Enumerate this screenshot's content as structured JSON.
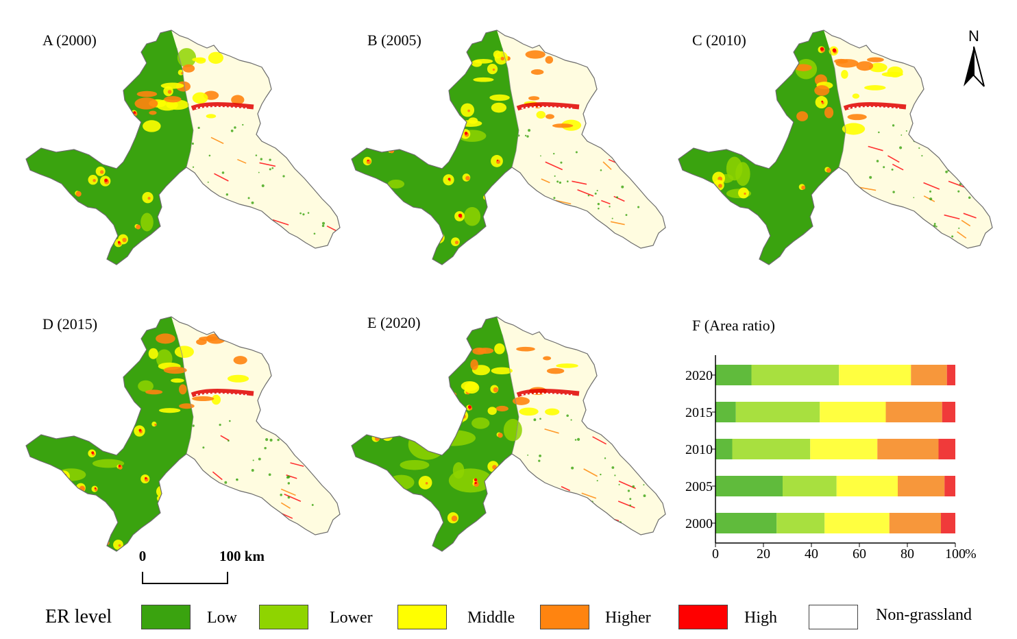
{
  "panels": {
    "a": "A (2000)",
    "b": "B (2005)",
    "c": "C (2010)",
    "d": "D (2015)",
    "e": "E (2020)",
    "f": "F (Area ratio)"
  },
  "north_arrow": {
    "label": "N",
    "icon": "north-arrow-icon"
  },
  "scale_bar": {
    "start": "0",
    "end": "100 km"
  },
  "legend": {
    "title": "ER level",
    "items": [
      {
        "label": "Low",
        "color": "#3aa30f"
      },
      {
        "label": "Lower",
        "color": "#8fd400"
      },
      {
        "label": "Middle",
        "color": "#ffff00"
      },
      {
        "label": "Higher",
        "color": "#ff8410"
      },
      {
        "label": "High",
        "color": "#ff0000"
      },
      {
        "label": "Non-grassland",
        "color": "#ffffff"
      }
    ]
  },
  "chart_data": {
    "type": "bar",
    "orientation": "horizontal",
    "stacked": true,
    "title": "F (Area ratio)",
    "categories": [
      "2020",
      "2015",
      "2010",
      "2005",
      "2000"
    ],
    "series": [
      {
        "name": "Low",
        "color": "#60bb3c",
        "values": [
          15,
          8.5,
          7,
          28,
          25.5
        ]
      },
      {
        "name": "Lower",
        "color": "#a8e03f",
        "values": [
          36.5,
          35,
          32.5,
          22.5,
          20
        ]
      },
      {
        "name": "Middle",
        "color": "#ffff40",
        "values": [
          30,
          27.5,
          28,
          25.5,
          27
        ]
      },
      {
        "name": "Higher",
        "color": "#f7973b",
        "values": [
          15,
          23.5,
          25.5,
          19.5,
          21.5
        ]
      },
      {
        "name": "High",
        "color": "#f03a3a",
        "values": [
          3.5,
          5.5,
          7,
          4.5,
          6
        ]
      }
    ],
    "xticks": [
      "0",
      "20",
      "40",
      "60",
      "80",
      "100"
    ],
    "xlim": [
      0,
      100
    ],
    "x_unit": "%"
  }
}
